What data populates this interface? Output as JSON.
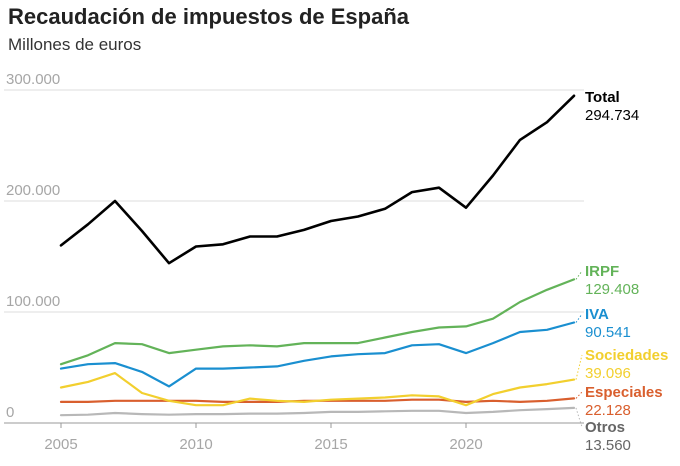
{
  "header": {
    "title": "Recaudación de impuestos de España",
    "subtitle": "Millones de euros"
  },
  "chart_data": {
    "type": "line",
    "title": "Recaudación de impuestos de España",
    "subtitle": "Millones de euros",
    "xlabel": "",
    "ylabel": "",
    "x": [
      2005,
      2006,
      2007,
      2008,
      2009,
      2010,
      2011,
      2012,
      2013,
      2014,
      2015,
      2016,
      2017,
      2018,
      2019,
      2020,
      2021,
      2022,
      2023,
      2024
    ],
    "ylim": [
      0,
      300000
    ],
    "xlim": [
      2005,
      2024
    ],
    "y_ticks": [
      0,
      100000,
      200000,
      300000
    ],
    "y_tick_labels": [
      "0",
      "100.000",
      "200.000",
      "300.000"
    ],
    "x_ticks": [
      2005,
      2010,
      2015,
      2020
    ],
    "x_tick_labels": [
      "2005",
      "2010",
      "2015",
      "2020"
    ],
    "grid": "horizontal",
    "legend": "right (labels at line ends)",
    "series": [
      {
        "name": "Total",
        "color": "#000000",
        "end_label": "294.734",
        "values": [
          160000,
          179000,
          200000,
          173000,
          144000,
          159000,
          161000,
          168000,
          168000,
          174000,
          182000,
          186000,
          193000,
          208000,
          212000,
          194000,
          223000,
          255000,
          271000,
          294734
        ]
      },
      {
        "name": "IRPF",
        "color": "#63b359",
        "end_label": "129.408",
        "values": [
          53000,
          61000,
          72000,
          71000,
          63000,
          66000,
          69000,
          70000,
          69000,
          72000,
          72000,
          72000,
          77000,
          82000,
          86000,
          87000,
          94000,
          109000,
          120000,
          129408
        ]
      },
      {
        "name": "IVA",
        "color": "#1a8fd0",
        "end_label": "90.541",
        "values": [
          49000,
          53000,
          54000,
          46000,
          33000,
          49000,
          49000,
          50000,
          51000,
          56000,
          60000,
          62000,
          63000,
          70000,
          71000,
          63000,
          72000,
          82000,
          84000,
          90541
        ]
      },
      {
        "name": "Sociedades",
        "color": "#f2cf2e",
        "end_label": "39.096",
        "values": [
          32000,
          37000,
          45000,
          27000,
          20000,
          16000,
          16000,
          22000,
          20000,
          19000,
          21000,
          22000,
          23000,
          25000,
          24000,
          16000,
          26000,
          32000,
          35000,
          39096
        ]
      },
      {
        "name": "Especiales",
        "color": "#d95f2e",
        "end_label": "22.128",
        "values": [
          19000,
          19000,
          20000,
          20000,
          20000,
          20000,
          19000,
          19000,
          19000,
          20000,
          20000,
          20000,
          20000,
          21000,
          21000,
          19000,
          20000,
          19000,
          20000,
          22128
        ]
      },
      {
        "name": "Otros",
        "color": "#b8b8b8",
        "end_label": "13.560",
        "values": [
          7000,
          7500,
          9000,
          8000,
          7500,
          8000,
          8000,
          8500,
          8500,
          9000,
          10000,
          10000,
          10500,
          11000,
          11000,
          9000,
          10000,
          11500,
          12500,
          13560
        ]
      }
    ]
  }
}
